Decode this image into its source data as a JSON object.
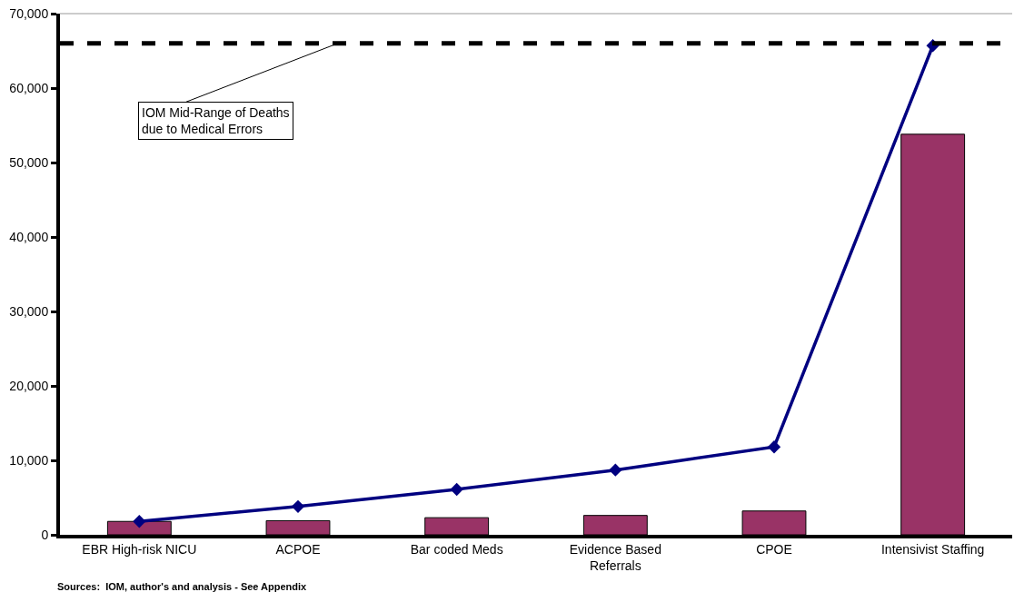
{
  "chart_data": {
    "type": "bar",
    "categories": [
      "EBR High-risk NICU",
      "ACPOE",
      "Bar coded Meds",
      "Evidence Based\nReferrals",
      "CPOE",
      "Intensivist Staffing"
    ],
    "series": [
      {
        "color": "#993366",
        "values": [
          1800,
          1900,
          2300,
          2600,
          3200,
          53800
        ]
      },
      {
        "type": "line",
        "color": "#000080",
        "marker": "diamond",
        "line_style": "solid",
        "values": [
          1800,
          3800,
          6100,
          8700,
          11800,
          65700
        ]
      }
    ],
    "ylim": [
      0,
      70000
    ],
    "yticks": [
      {
        "value": 0,
        "label": "0"
      },
      {
        "value": 10000,
        "label": "10,000"
      },
      {
        "value": 20000,
        "label": "20,000"
      },
      {
        "value": 30000,
        "label": "30,000"
      },
      {
        "value": 40000,
        "label": "40,000"
      },
      {
        "value": 50000,
        "label": "50,000"
      },
      {
        "value": 60000,
        "label": "60,000"
      },
      {
        "value": 70000,
        "label": "70,000"
      }
    ],
    "grid": false,
    "legend": false,
    "ref_lines": [
      {
        "axis": "y",
        "value": 66000,
        "label": "IOM Mid-Range of Deaths\ndue to Medical Errors",
        "color": "#000000",
        "line_style": "dashed"
      }
    ],
    "annotations": [
      "Sources:  IOM, author's and analysis - See Appendix"
    ]
  }
}
